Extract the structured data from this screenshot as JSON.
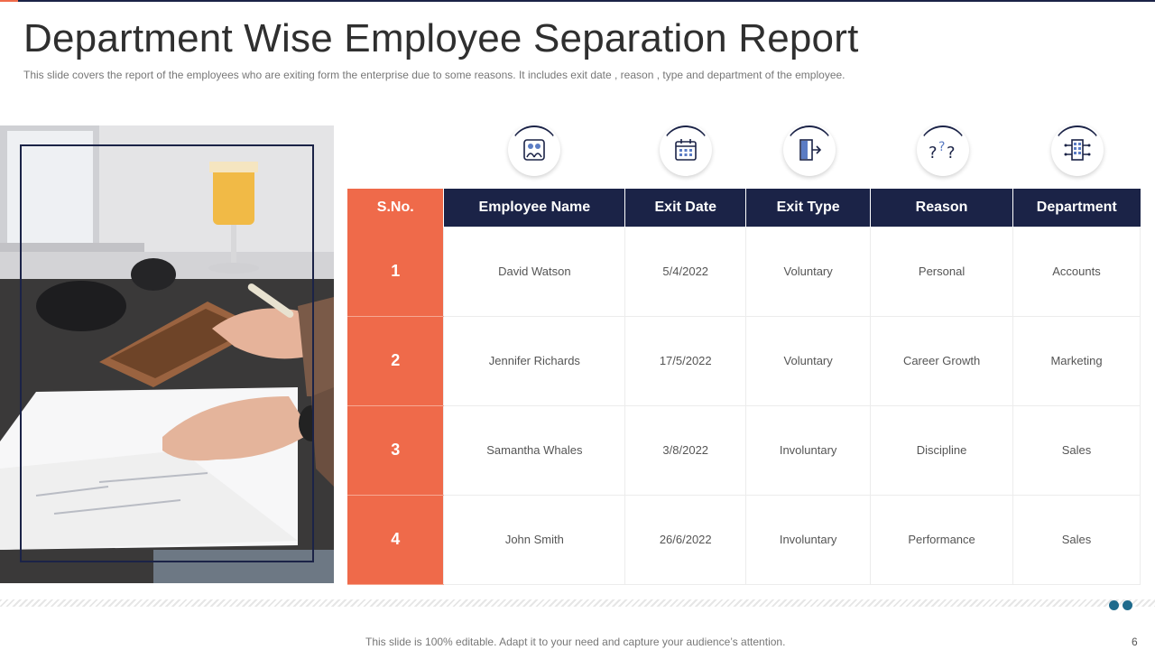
{
  "title": "Department Wise Employee Separation Report",
  "subtitle": "This slide covers the report  of the employees who are exiting form the enterprise due to some reasons. It includes exit date ,  reason , type  and department of the employee.",
  "icons": [
    "employee-group-icon",
    "calendar-icon",
    "exit-door-icon",
    "question-marks-icon",
    "building-network-icon"
  ],
  "table": {
    "headers": [
      "S.No.",
      "Employee Name",
      "Exit Date",
      "Exit Type",
      "Reason",
      "Department"
    ],
    "rows": [
      [
        "1",
        "David  Watson",
        "5/4/2022",
        "Voluntary",
        "Personal",
        "Accounts"
      ],
      [
        "2",
        "Jennifer  Richards",
        "17/5/2022",
        "Voluntary",
        "Career  Growth",
        "Marketing"
      ],
      [
        "3",
        "Samantha  Whales",
        "3/8/2022",
        "Involuntary",
        "Discipline",
        "Sales"
      ],
      [
        "4",
        "John  Smith",
        "26/6/2022",
        "Involuntary",
        "Performance",
        "Sales"
      ]
    ]
  },
  "footer": "This slide is 100% editable. Adapt it to your need and capture your audience’s attention.",
  "page_number": "6",
  "colors": {
    "navy": "#1b2347",
    "orange": "#ef6a4a",
    "dot": "#1e6a8c"
  }
}
